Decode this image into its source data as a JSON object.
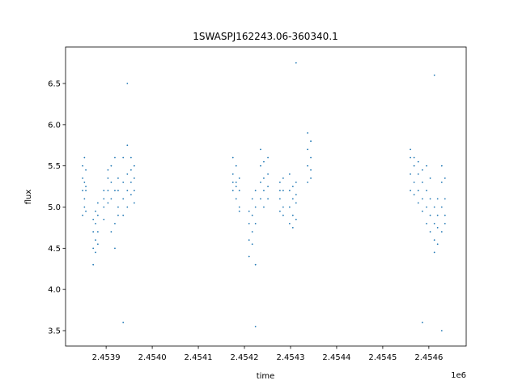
{
  "chart_data": {
    "type": "scatter",
    "title": "1SWASPJ162243.06-360340.1",
    "x_label": "time",
    "y_label": "flux",
    "x_offset_label": "1e6",
    "color": "#1f77b4",
    "grid": false,
    "xlim": [
      2.453812,
      2.454681
    ],
    "ylim": [
      3.313,
      6.943
    ],
    "xticks": [
      2.4539,
      {
        "value": 2.454,
        "label": "2.4540"
      },
      2.4541,
      2.4542,
      2.4543,
      2.4544,
      2.4545,
      2.4546
    ],
    "yticks": [
      3.5,
      {
        "value": 4.0,
        "label": "4.0"
      },
      4.5,
      {
        "value": 5.0,
        "label": "5.0"
      },
      5.5,
      {
        "value": 6.0,
        "label": "6.0"
      },
      6.5
    ],
    "x": [
      2.453849,
      2.453849,
      2.453849,
      2.453849,
      2.453853,
      2.453853,
      2.453853,
      2.453853,
      2.453856,
      2.453856,
      2.453856,
      2.453856,
      2.453872,
      2.453872,
      2.453872,
      2.453872,
      2.453877,
      2.453877,
      2.453877,
      2.453877,
      2.453882,
      2.453882,
      2.453882,
      2.453882,
      2.453895,
      2.453895,
      2.453895,
      2.453895,
      2.453904,
      2.453904,
      2.453904,
      2.453904,
      2.453911,
      2.453911,
      2.453911,
      2.453911,
      2.453919,
      2.453919,
      2.453919,
      2.453919,
      2.453926,
      2.453926,
      2.453926,
      2.453926,
      2.453937,
      2.453937,
      2.453937,
      2.453937,
      2.453946,
      2.453946,
      2.453946,
      2.453946,
      2.453954,
      2.453954,
      2.453954,
      2.453954,
      2.453961,
      2.453961,
      2.453961,
      2.453961,
      2.454175,
      2.454175,
      2.454175,
      2.454175,
      2.454182,
      2.454182,
      2.454182,
      2.454182,
      2.454189,
      2.454189,
      2.454189,
      2.454189,
      2.45421,
      2.45421,
      2.45421,
      2.45421,
      2.454217,
      2.454217,
      2.454217,
      2.454217,
      2.454224,
      2.454224,
      2.454224,
      2.454224,
      2.454235,
      2.454235,
      2.454235,
      2.454235,
      2.454242,
      2.454242,
      2.454242,
      2.454242,
      2.454251,
      2.454251,
      2.454251,
      2.454251,
      2.454277,
      2.454277,
      2.454277,
      2.454277,
      2.454284,
      2.454284,
      2.454284,
      2.454284,
      2.454298,
      2.454298,
      2.454298,
      2.454298,
      2.454305,
      2.454305,
      2.454305,
      2.454305,
      2.454312,
      2.454312,
      2.454312,
      2.454312,
      2.454337,
      2.454337,
      2.454337,
      2.454337,
      2.454344,
      2.454344,
      2.454344,
      2.454344,
      2.45456,
      2.45456,
      2.45456,
      2.45456,
      2.454568,
      2.454568,
      2.454568,
      2.454568,
      2.454577,
      2.454577,
      2.454577,
      2.454577,
      2.454586,
      2.454586,
      2.454586,
      2.454586,
      2.454595,
      2.454595,
      2.454595,
      2.454595,
      2.454603,
      2.454603,
      2.454603,
      2.454603,
      2.454612,
      2.454612,
      2.454612,
      2.454612,
      2.454619,
      2.454619,
      2.454619,
      2.454619,
      2.454628,
      2.454628,
      2.454628,
      2.454628,
      2.454635,
      2.454635,
      2.454635,
      2.454635,
      2.453946,
      2.453937,
      2.454224,
      2.454312,
      2.454612,
      2.454628,
      2.454586
    ],
    "values": [
      5.2,
      5.5,
      4.9,
      5.35,
      5.1,
      5.6,
      5.0,
      5.3,
      5.2,
      4.95,
      5.45,
      5.25,
      4.7,
      4.5,
      4.85,
      4.3,
      4.6,
      4.8,
      4.45,
      4.95,
      4.7,
      4.9,
      5.05,
      4.55,
      5.0,
      5.2,
      5.1,
      4.85,
      5.2,
      5.35,
      5.05,
      5.45,
      5.3,
      5.5,
      4.7,
      5.1,
      5.6,
      4.8,
      5.2,
      4.5,
      5.0,
      5.2,
      4.9,
      5.35,
      5.1,
      5.3,
      4.9,
      5.6,
      5.2,
      5.4,
      5.0,
      5.75,
      5.3,
      5.45,
      5.15,
      5.6,
      5.2,
      5.35,
      5.5,
      5.05,
      5.4,
      5.2,
      5.6,
      5.3,
      5.3,
      5.1,
      5.5,
      5.25,
      5.2,
      5.0,
      5.35,
      4.95,
      4.8,
      4.6,
      4.95,
      4.4,
      4.9,
      4.7,
      5.1,
      4.55,
      5.0,
      4.8,
      5.2,
      4.3,
      5.3,
      5.5,
      5.1,
      5.7,
      5.35,
      5.2,
      5.55,
      5.0,
      5.4,
      5.25,
      5.6,
      5.1,
      5.1,
      5.3,
      4.95,
      5.2,
      5.2,
      5.0,
      5.35,
      4.9,
      5.0,
      5.2,
      4.8,
      5.4,
      4.9,
      5.1,
      4.75,
      5.25,
      5.05,
      5.3,
      4.85,
      5.15,
      5.5,
      5.7,
      5.3,
      5.9,
      5.6,
      5.45,
      5.8,
      5.35,
      5.4,
      5.6,
      5.2,
      5.7,
      5.3,
      5.5,
      5.15,
      5.6,
      5.2,
      5.4,
      5.05,
      5.55,
      5.1,
      5.3,
      4.95,
      5.45,
      5.0,
      5.2,
      4.8,
      5.5,
      4.9,
      5.1,
      4.7,
      5.35,
      4.8,
      4.6,
      5.0,
      4.45,
      4.75,
      4.9,
      4.55,
      5.1,
      5.0,
      5.3,
      4.7,
      5.5,
      5.1,
      4.9,
      5.35,
      4.8,
      6.5,
      3.6,
      3.55,
      6.75,
      6.6,
      3.5,
      3.6
    ]
  }
}
